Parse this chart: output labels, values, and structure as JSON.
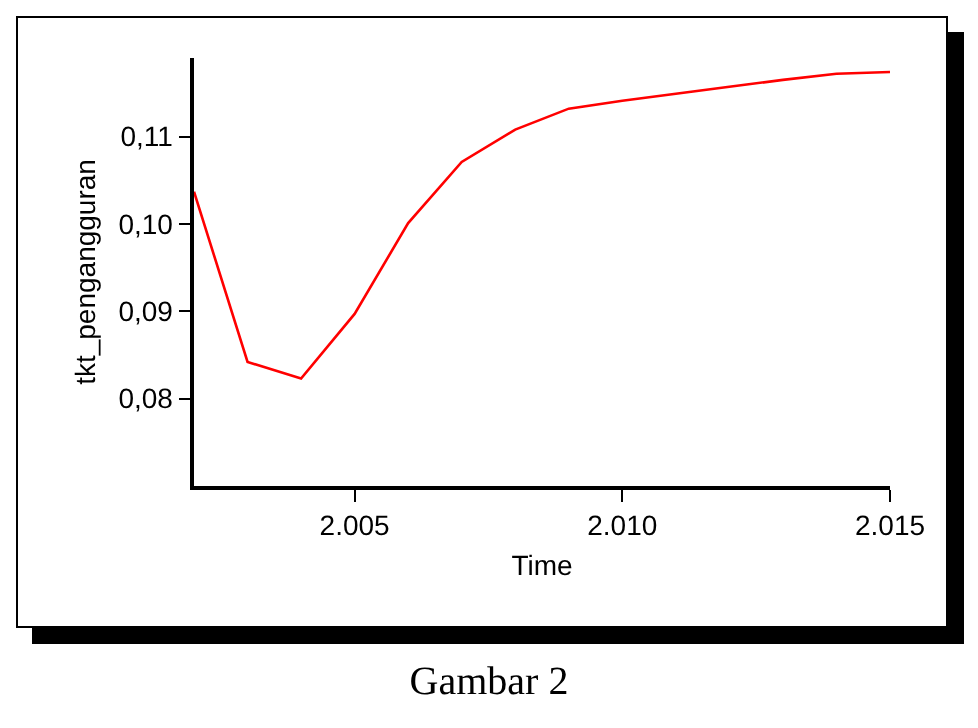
{
  "chart_data": {
    "type": "line",
    "xlabel": "Time",
    "ylabel": "tkt_pengangguran",
    "x": [
      2002,
      2003,
      2004,
      2005,
      2006,
      2007,
      2008,
      2009,
      2010,
      2011,
      2012,
      2013,
      2014,
      2015
    ],
    "series": [
      {
        "color": "#ff0000",
        "values": [
          0.1037,
          0.0842,
          0.0823,
          0.0897,
          0.1001,
          0.1071,
          0.1108,
          0.1132,
          0.1141,
          0.1149,
          0.1157,
          0.1165,
          0.1172,
          0.1174
        ]
      }
    ],
    "xlim": [
      2002,
      2015
    ],
    "xticks": [
      {
        "value": 2005,
        "label": "2.005"
      },
      {
        "value": 2010,
        "label": "2.010"
      },
      {
        "value": 2015,
        "label": "2.015"
      }
    ],
    "ylim": [
      0.07,
      0.119
    ],
    "yticks": [
      {
        "value": 0.08,
        "label": "0,08"
      },
      {
        "value": 0.09,
        "label": "0,09"
      },
      {
        "value": 0.1,
        "label": "0,10"
      },
      {
        "value": 0.11,
        "label": "0,11"
      }
    ],
    "grid": false,
    "marker": "none",
    "line_style": "solid",
    "annotations": [
      "Gambar 2"
    ]
  }
}
